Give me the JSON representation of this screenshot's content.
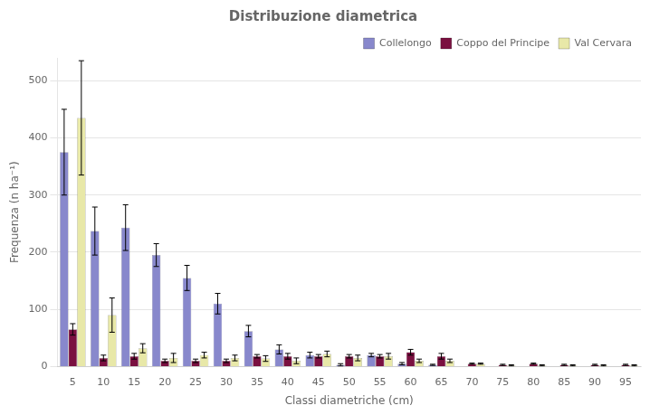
{
  "chart_data": {
    "type": "bar",
    "title": "Distribuzione diametrica",
    "xlabel": "Classi diametriche (cm)",
    "ylabel": "Frequenza (n ha⁻¹)",
    "categories": [
      5,
      10,
      15,
      20,
      25,
      30,
      35,
      40,
      45,
      50,
      55,
      60,
      65,
      70,
      75,
      80,
      85,
      90,
      95
    ],
    "series": [
      {
        "name": "Collelongo",
        "color": "#8888cc",
        "values": [
          375,
          237,
          243,
          195,
          155,
          110,
          62,
          30,
          20,
          3,
          20,
          5,
          3,
          0,
          0,
          0,
          0,
          0,
          0
        ],
        "errors": [
          75,
          42,
          40,
          20,
          22,
          18,
          10,
          8,
          5,
          2,
          3,
          2,
          1,
          0,
          0,
          0,
          0,
          0,
          0
        ]
      },
      {
        "name": "Coppo del Principe",
        "color": "#7a1040",
        "values": [
          65,
          15,
          18,
          10,
          10,
          10,
          18,
          18,
          18,
          18,
          18,
          25,
          18,
          5,
          3,
          5,
          3,
          3,
          3
        ],
        "errors": [
          10,
          5,
          5,
          3,
          3,
          3,
          3,
          5,
          3,
          3,
          3,
          5,
          5,
          1,
          1,
          1,
          1,
          1,
          1
        ]
      },
      {
        "name": "Val Cervara",
        "color": "#e8e8a8",
        "values": [
          435,
          90,
          32,
          15,
          20,
          15,
          14,
          10,
          22,
          15,
          18,
          10,
          10,
          5,
          2,
          2,
          2,
          2,
          2
        ],
        "errors": [
          100,
          30,
          8,
          8,
          5,
          5,
          5,
          5,
          5,
          5,
          5,
          3,
          3,
          1,
          1,
          1,
          1,
          1,
          1
        ]
      }
    ],
    "ylim": [
      0,
      540
    ],
    "yticks": [
      0,
      100,
      200,
      300,
      400,
      500
    ],
    "grid": true,
    "legend": "upper right"
  }
}
